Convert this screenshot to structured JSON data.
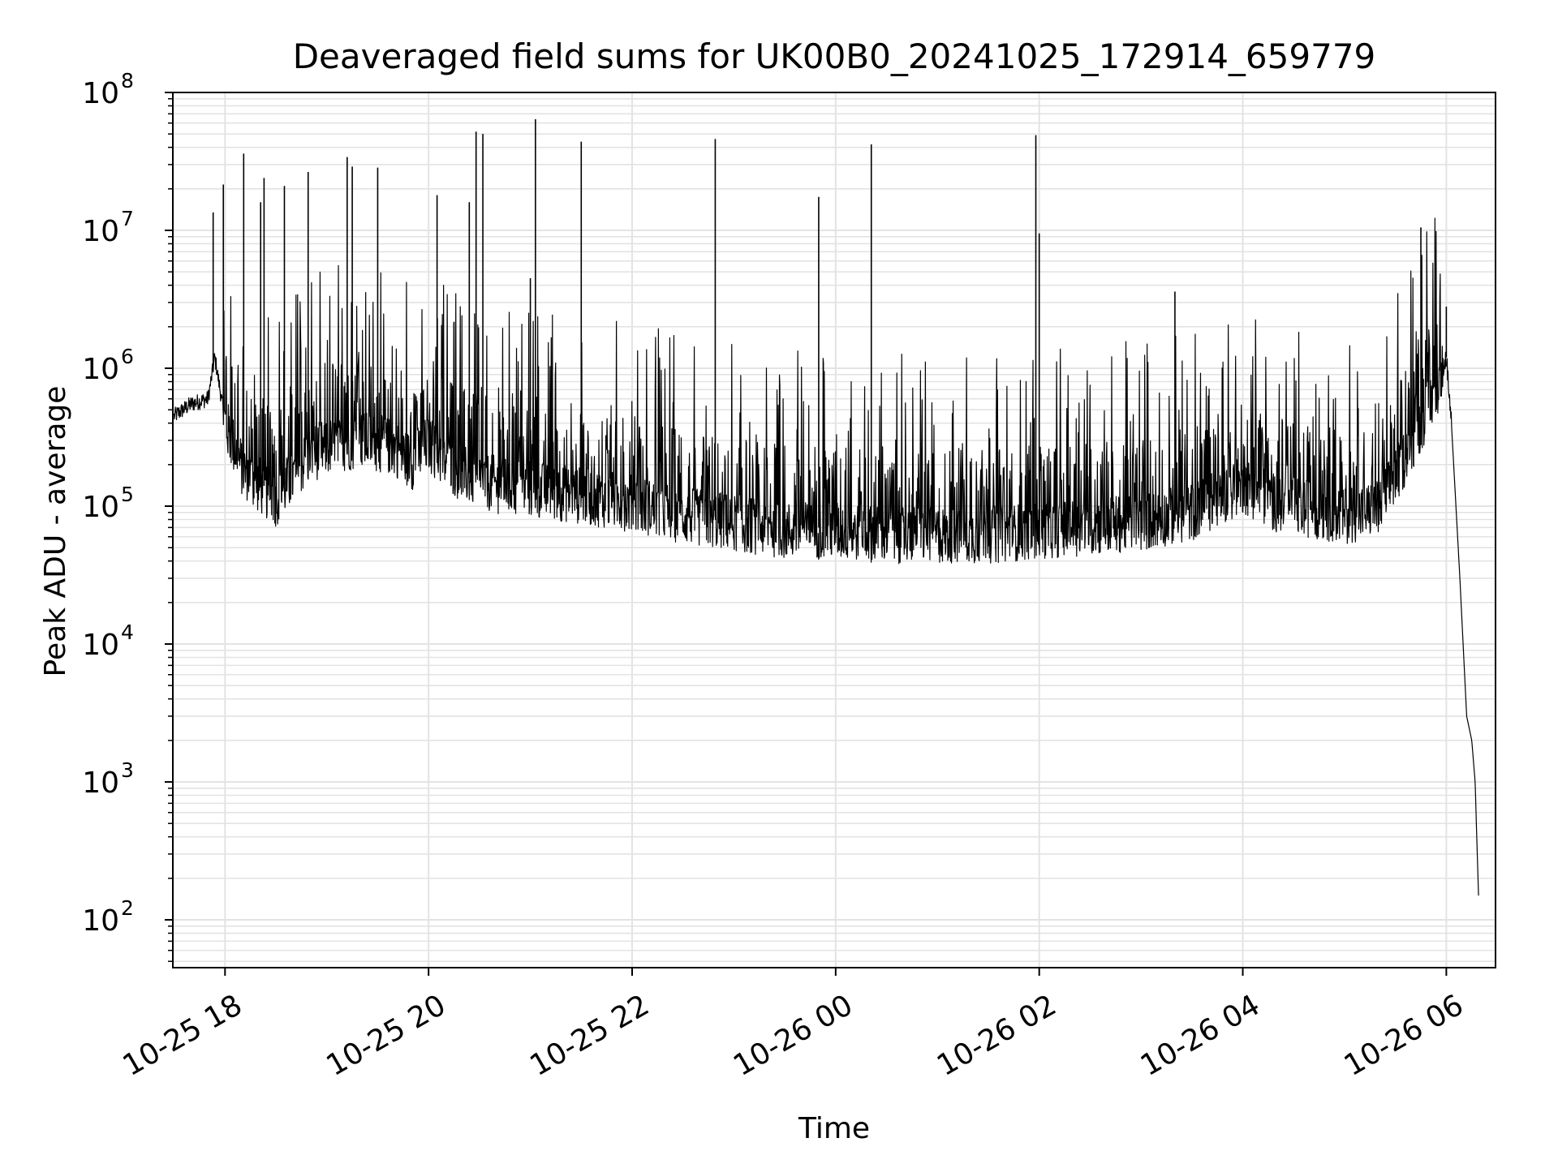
{
  "chart_data": {
    "type": "line",
    "title": "Deaveraged field sums for UK00B0_20241025_172914_659779",
    "xlabel": "Time",
    "ylabel": "Peak ADU - average",
    "yscale": "log",
    "ylim": [
      45,
      100000000
    ],
    "xlim": [
      "2024-10-25 17:29:14",
      "2024-10-26 06:29:00"
    ],
    "grid": true,
    "line_color": "#000000",
    "x_ticks": [
      {
        "x": "2024-10-25 18:00",
        "label": "10-25 18"
      },
      {
        "x": "2024-10-25 20:00",
        "label": "10-25 20"
      },
      {
        "x": "2024-10-25 22:00",
        "label": "10-25 22"
      },
      {
        "x": "2024-10-26 00:00",
        "label": "10-26 00"
      },
      {
        "x": "2024-10-26 02:00",
        "label": "10-26 02"
      },
      {
        "x": "2024-10-26 04:00",
        "label": "10-26 04"
      },
      {
        "x": "2024-10-26 06:00",
        "label": "10-26 06"
      }
    ],
    "y_ticks": [
      {
        "value": 100,
        "base": "10",
        "exp": "2"
      },
      {
        "value": 1000,
        "base": "10",
        "exp": "3"
      },
      {
        "value": 10000,
        "base": "10",
        "exp": "4"
      },
      {
        "value": 100000,
        "base": "10",
        "exp": "5"
      },
      {
        "value": 1000000,
        "base": "10",
        "exp": "6"
      },
      {
        "value": 10000000,
        "base": "10",
        "exp": "7"
      },
      {
        "value": 100000000,
        "base": "10",
        "exp": "8"
      }
    ],
    "series": [
      {
        "points": [
          [
            "2024-10-25 17:30",
            450000
          ],
          [
            "2024-10-25 17:40",
            550000
          ],
          [
            "2024-10-25 17:50",
            600000
          ],
          [
            "2024-10-25 17:54",
            1200000
          ],
          [
            "2024-10-25 18:00",
            420000
          ],
          [
            "2024-10-25 18:10",
            200000
          ],
          [
            "2024-10-25 18:20",
            150000
          ],
          [
            "2024-10-25 18:30",
            120000
          ],
          [
            "2024-10-25 18:40",
            170000
          ],
          [
            "2024-10-25 18:50",
            250000
          ],
          [
            "2024-10-25 19:00",
            280000
          ],
          [
            "2024-10-25 19:10",
            300000
          ],
          [
            "2024-10-25 19:20",
            320000
          ],
          [
            "2024-10-25 19:30",
            300000
          ],
          [
            "2024-10-25 19:40",
            280000
          ],
          [
            "2024-10-25 19:50",
            220000
          ],
          [
            "2024-10-25 20:00",
            300000
          ],
          [
            "2024-10-25 20:10",
            220000
          ],
          [
            "2024-10-25 20:20",
            180000
          ],
          [
            "2024-10-25 20:40",
            150000
          ],
          [
            "2024-10-25 21:00",
            140000
          ],
          [
            "2024-10-25 21:20",
            130000
          ],
          [
            "2024-10-25 21:40",
            120000
          ],
          [
            "2024-10-25 22:00",
            110000
          ],
          [
            "2024-10-25 22:30",
            90000
          ],
          [
            "2024-10-25 23:00",
            80000
          ],
          [
            "2024-10-25 23:30",
            70000
          ],
          [
            "2024-10-26 00:00",
            70000
          ],
          [
            "2024-10-26 00:30",
            65000
          ],
          [
            "2024-10-26 01:00",
            65000
          ],
          [
            "2024-10-26 01:30",
            65000
          ],
          [
            "2024-10-26 02:00",
            70000
          ],
          [
            "2024-10-26 02:30",
            75000
          ],
          [
            "2024-10-26 03:00",
            80000
          ],
          [
            "2024-10-26 03:30",
            95000
          ],
          [
            "2024-10-26 04:00",
            150000
          ],
          [
            "2024-10-26 04:20",
            110000
          ],
          [
            "2024-10-26 04:40",
            100000
          ],
          [
            "2024-10-26 05:00",
            90000
          ],
          [
            "2024-10-26 05:20",
            100000
          ],
          [
            "2024-10-26 05:40",
            300000
          ],
          [
            "2024-10-26 05:55",
            800000
          ],
          [
            "2024-10-26 06:00",
            1200000
          ],
          [
            "2024-10-26 06:03",
            400000
          ],
          [
            "2024-10-26 06:08",
            30000
          ],
          [
            "2024-10-26 06:12",
            3000
          ],
          [
            "2024-10-26 06:15",
            2000
          ],
          [
            "2024-10-26 06:17",
            1000
          ],
          [
            "2024-10-26 06:18",
            380
          ],
          [
            "2024-10-26 06:19",
            150
          ]
        ],
        "spikes": [
          [
            "2024-10-25 17:53",
            13500000
          ],
          [
            "2024-10-25 17:59",
            21500000
          ],
          [
            "2024-10-25 18:11",
            36000000
          ],
          [
            "2024-10-25 18:21",
            16000000
          ],
          [
            "2024-10-25 18:23",
            24000000
          ],
          [
            "2024-10-25 18:35",
            21000000
          ],
          [
            "2024-10-25 18:49",
            26500000
          ],
          [
            "2024-10-25 19:12",
            34000000
          ],
          [
            "2024-10-25 19:15",
            29000000
          ],
          [
            "2024-10-25 19:30",
            28500000
          ],
          [
            "2024-10-25 20:05",
            18000000
          ],
          [
            "2024-10-25 20:24",
            16000000
          ],
          [
            "2024-10-25 20:28",
            52000000
          ],
          [
            "2024-10-25 20:32",
            50000000
          ],
          [
            "2024-10-25 21:00",
            4500000
          ],
          [
            "2024-10-25 21:03",
            64000000
          ],
          [
            "2024-10-25 21:30",
            44000000
          ],
          [
            "2024-10-25 22:49",
            46000000
          ],
          [
            "2024-10-25 23:50",
            17500000
          ],
          [
            "2024-10-26 00:21",
            42000000
          ],
          [
            "2024-10-26 01:58",
            49000000
          ],
          [
            "2024-10-26 02:00",
            9500000
          ],
          [
            "2024-10-26 03:20",
            3600000
          ],
          [
            "2024-10-26 05:45",
            10500000
          ],
          [
            "2024-10-26 06:00",
            2800000
          ]
        ]
      }
    ]
  }
}
